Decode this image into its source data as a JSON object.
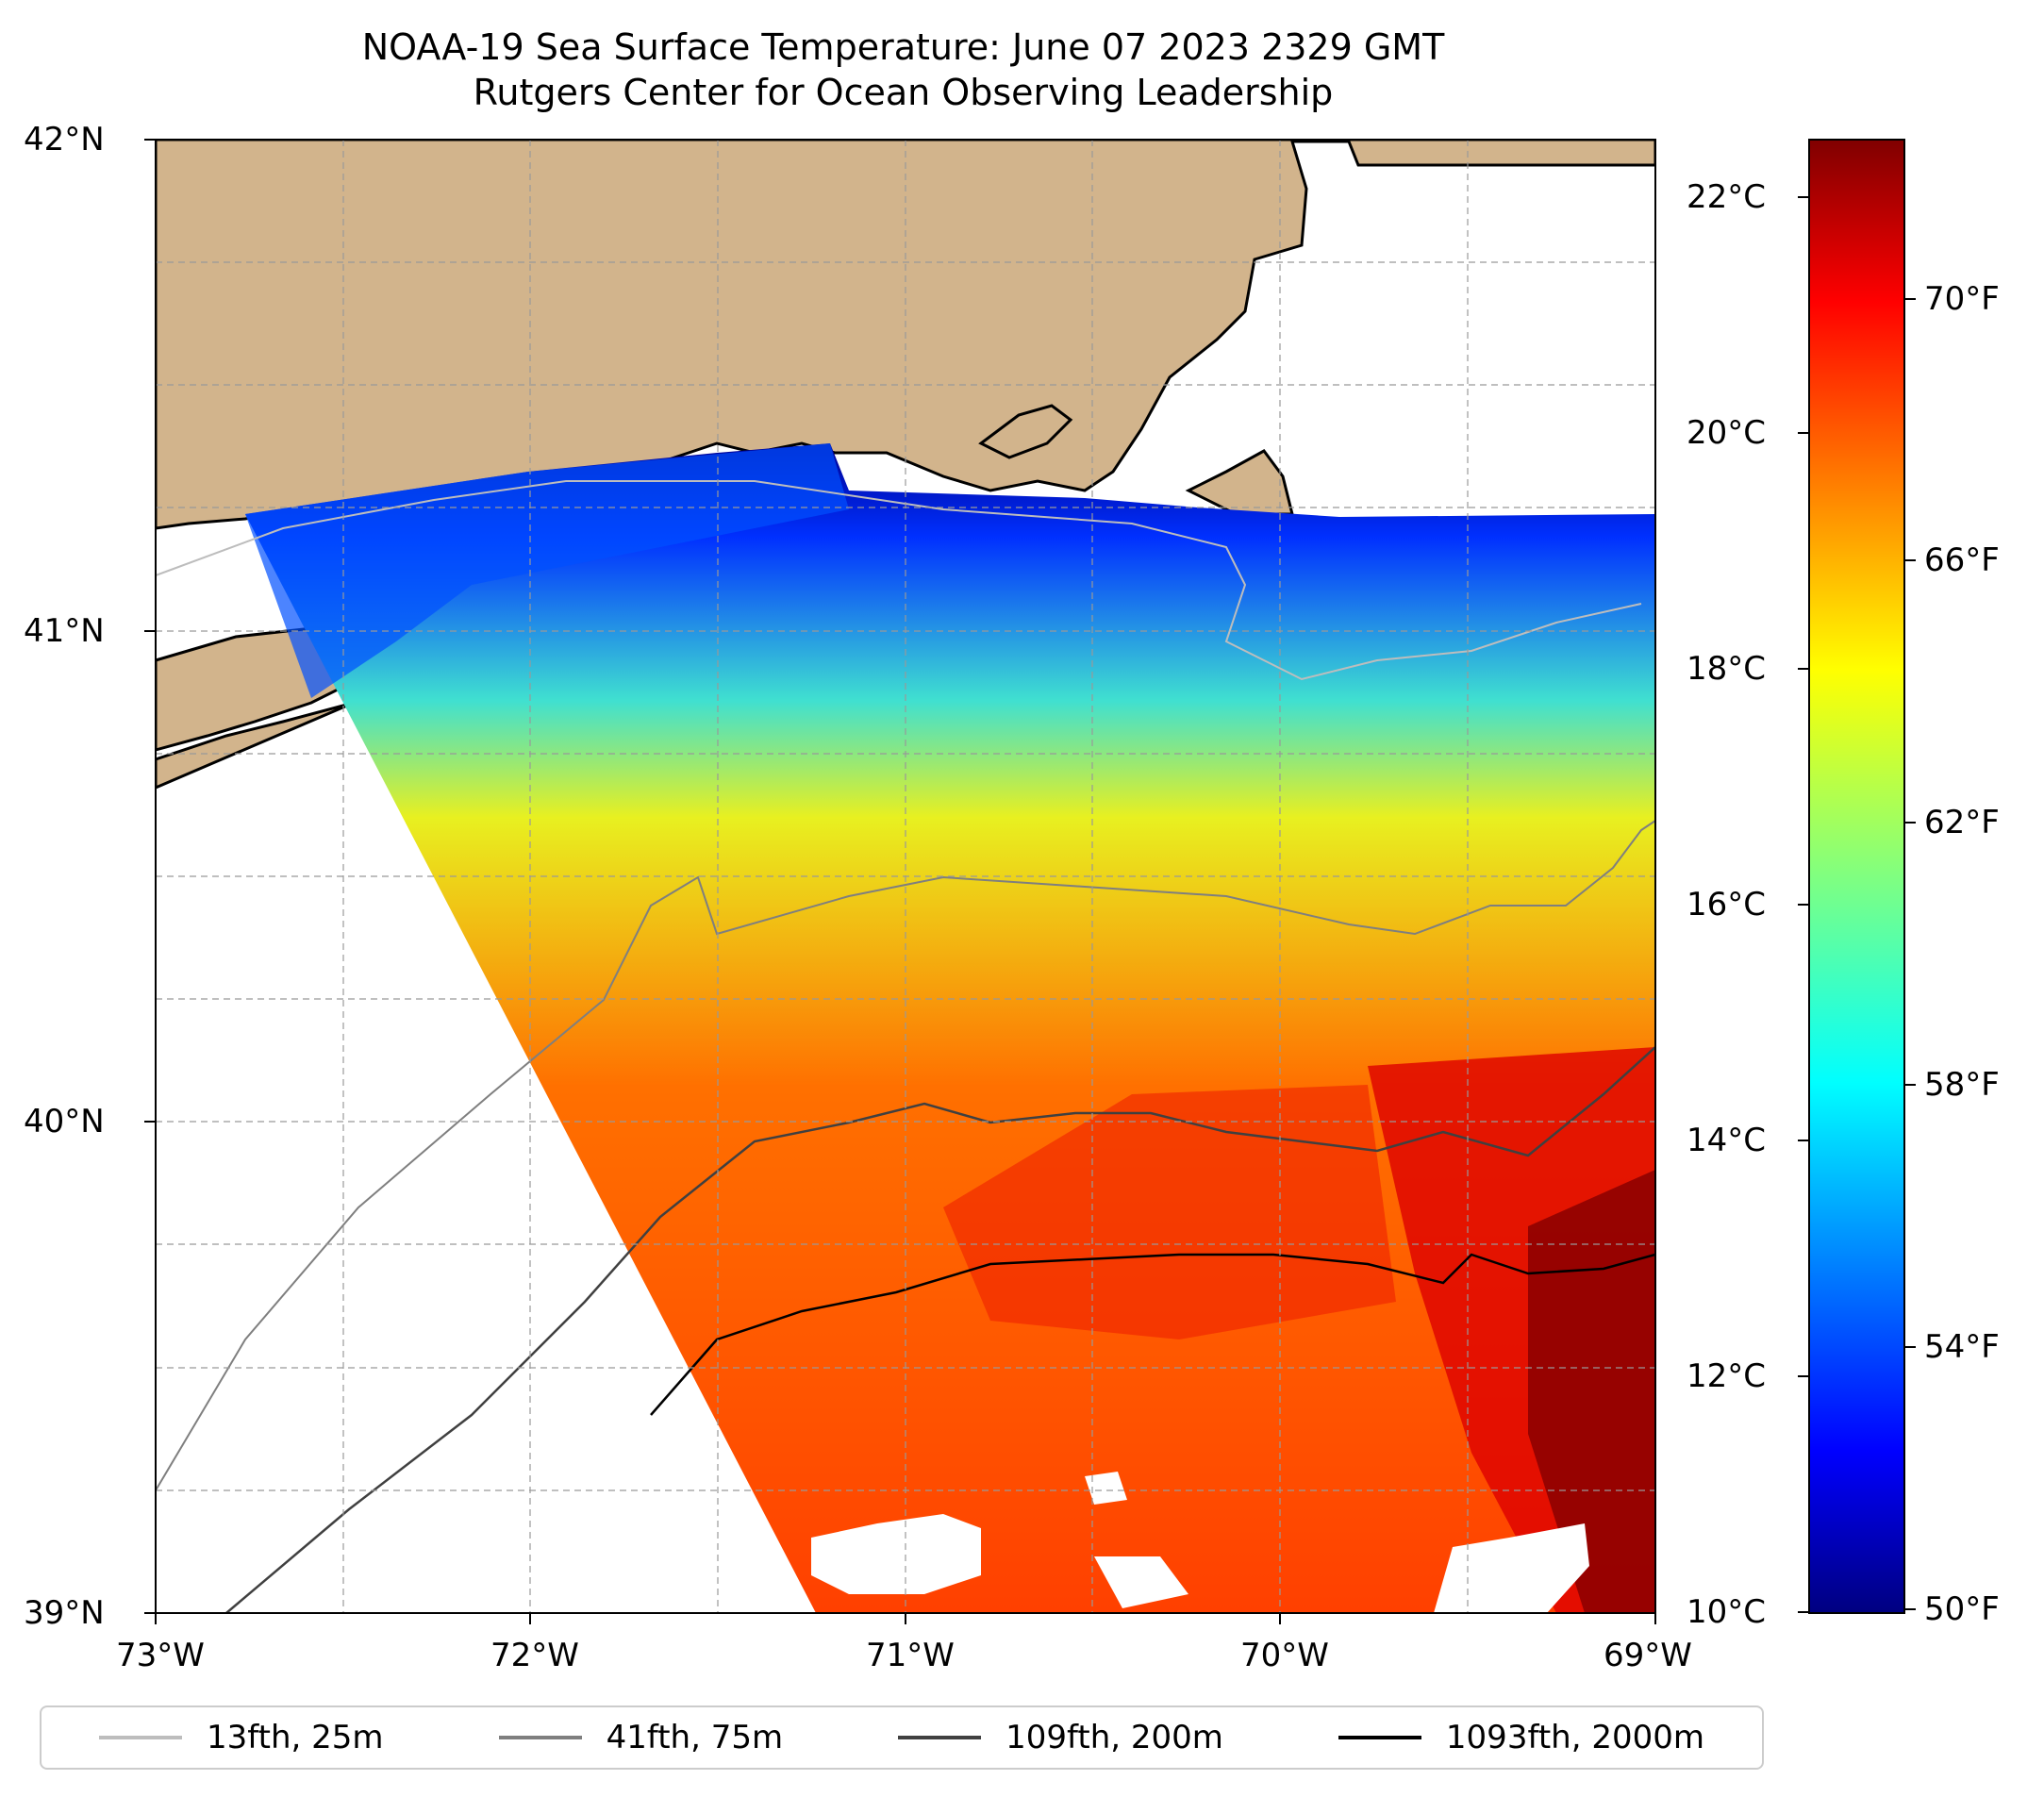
{
  "title": {
    "line1": "NOAA-19 Sea Surface Temperature: June 07 2023 2329 GMT",
    "line2": "Rutgers Center for Ocean Observing Leadership"
  },
  "map": {
    "extent": {
      "lon_min": -73,
      "lon_max": -69,
      "lat_min": 39,
      "lat_max": 42
    },
    "lat_labels": [
      "42°N",
      "41°N",
      "40°N",
      "39°N"
    ],
    "lon_labels": [
      "73°W",
      "72°W",
      "71°W",
      "70°W",
      "69°W"
    ],
    "gridlines": "dashed",
    "colors": {
      "land": "#d2b48c",
      "coast": "#000000",
      "no_data": "#ffffff"
    }
  },
  "colorbar": {
    "colormap": "jet",
    "range_c": [
      10,
      22.5
    ],
    "celsius_labels": [
      "22°C",
      "20°C",
      "18°C",
      "16°C",
      "14°C",
      "12°C",
      "10°C"
    ],
    "fahrenheit_labels": [
      "70°F",
      "66°F",
      "62°F",
      "58°F",
      "54°F",
      "50°F"
    ]
  },
  "legend": [
    {
      "label": "13fth, 25m",
      "color": "#bdbdbd"
    },
    {
      "label": "41fth, 75m",
      "color": "#7f7f7f"
    },
    {
      "label": "109fth, 200m",
      "color": "#404040"
    },
    {
      "label": "1093fth, 2000m",
      "color": "#000000"
    }
  ]
}
